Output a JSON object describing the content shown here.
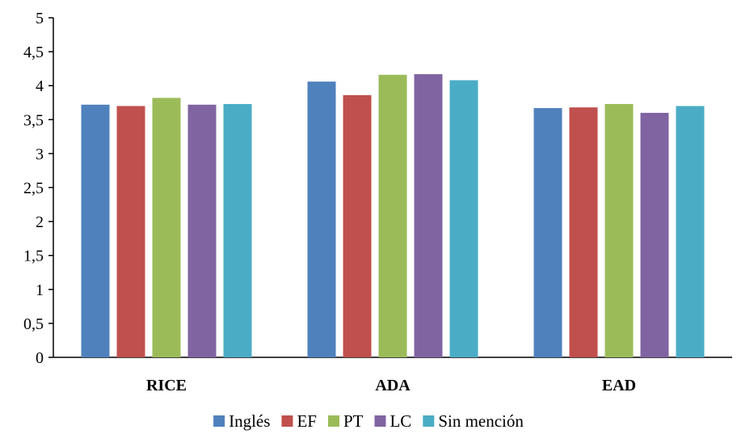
{
  "chart_data": {
    "type": "bar",
    "title": "",
    "xlabel": "",
    "ylabel": "",
    "categories": [
      "RICE",
      "ADA",
      "EAD"
    ],
    "ylim": [
      0,
      5
    ],
    "yticks": [
      "0",
      "0,5",
      "1",
      "1,5",
      "2",
      "2,5",
      "3",
      "3,5",
      "4",
      "4,5",
      "5"
    ],
    "grid": false,
    "legend_position": "bottom",
    "series": [
      {
        "name": "Inglés",
        "color": "#4F81BD",
        "values": [
          3.72,
          4.06,
          3.67
        ]
      },
      {
        "name": "EF",
        "color": "#C0504D",
        "values": [
          3.7,
          3.86,
          3.68
        ]
      },
      {
        "name": "PT",
        "color": "#9BBB59",
        "values": [
          3.82,
          4.16,
          3.73
        ]
      },
      {
        "name": "LC",
        "color": "#8064A2",
        "values": [
          3.72,
          4.17,
          3.6
        ]
      },
      {
        "name": "Sin mención",
        "color": "#4BACC6",
        "values": [
          3.73,
          4.08,
          3.7
        ]
      }
    ]
  }
}
